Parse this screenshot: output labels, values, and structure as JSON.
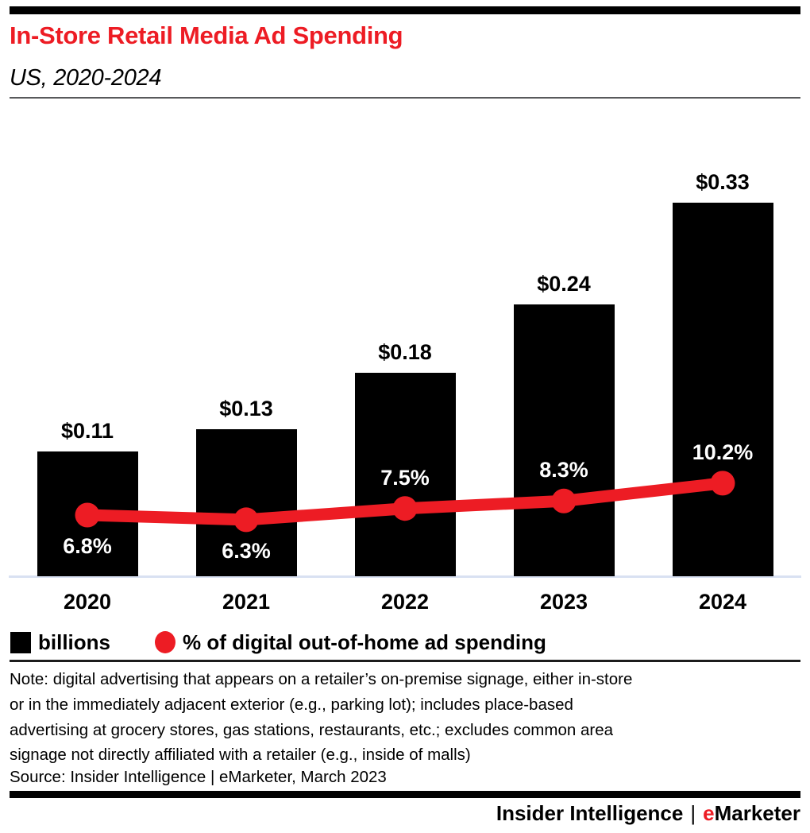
{
  "header": {
    "title": "In-Store Retail Media Ad Spending",
    "subtitle": "US, 2020-2024"
  },
  "chart_data": {
    "type": "bar",
    "subtype": "bar-line-combo",
    "title": "In-Store Retail Media Ad Spending",
    "subtitle": "US, 2020-2024",
    "categories": [
      "2020",
      "2021",
      "2022",
      "2023",
      "2024"
    ],
    "series": [
      {
        "name": "billions",
        "type": "bar",
        "unit": "US$ billions",
        "values": [
          0.11,
          0.13,
          0.18,
          0.24,
          0.33
        ],
        "data_labels": [
          "$0.11",
          "$0.13",
          "$0.18",
          "$0.24",
          "$0.33"
        ],
        "color": "#000000"
      },
      {
        "name": "% of digital out-of-home ad spending",
        "type": "line",
        "unit": "%",
        "values": [
          6.8,
          6.3,
          7.5,
          8.3,
          10.2
        ],
        "data_labels": [
          "6.8%",
          "6.3%",
          "7.5%",
          "8.3%",
          "10.2%"
        ],
        "color": "#ED1C24"
      }
    ],
    "xlabel": "",
    "ylabel": "",
    "axes_hidden": true,
    "grid": false,
    "legend_position": "bottom"
  },
  "legend": {
    "items": [
      {
        "label": "billions",
        "swatch": "black-square"
      },
      {
        "label": "% of digital out-of-home ad spending",
        "swatch": "red-circle"
      }
    ]
  },
  "note": {
    "lines": [
      "Note: digital advertising that appears on a retailer’s on-premise signage, either in-store",
      "or in the immediately adjacent exterior (e.g., parking lot); includes place-based",
      "advertising at grocery stores, gas stations, restaurants, etc.; excludes common area",
      "signage not directly affiliated with a retailer (e.g., inside of malls)"
    ]
  },
  "source": "Source: Insider Intelligence | eMarketer, March 2023",
  "footer": {
    "brand_left": "Insider Intelligence",
    "separator": "|",
    "emarketer_e": "e",
    "emarketer_rest": "Marketer"
  },
  "colors": {
    "accent_red": "#ED1C24",
    "bar_black": "#000000",
    "axis_line": "#d9e1f2",
    "divider_gray": "#58595b"
  }
}
